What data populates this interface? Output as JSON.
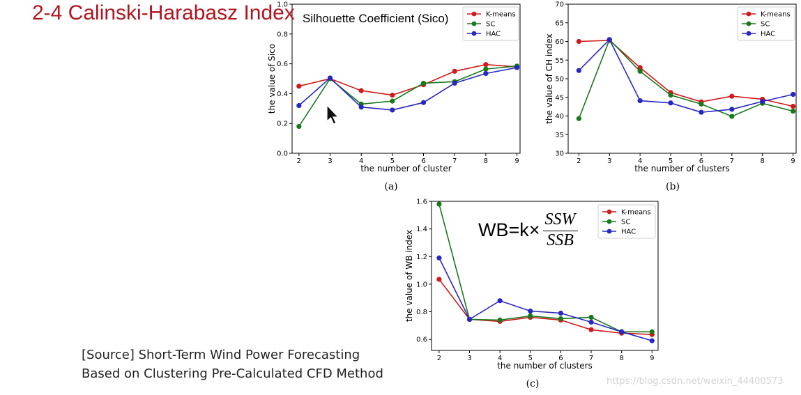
{
  "slide_title": "2-4  Calinski-Harabasz Index",
  "source": {
    "line1": "[Source]  Short-Term Wind Power Forecasting",
    "line2": "Based on Clustering Pre-Calculated CFD Method"
  },
  "watermark": "https://blog.csdn.net/weixin_44400573",
  "formula": {
    "lhs": "WB=k×",
    "numerator": "SSW",
    "denominator": "SSB"
  },
  "colors": {
    "kmeans": "#d0191a",
    "sc": "#18781c",
    "hac": "#2727c2",
    "title": "#b0161f"
  },
  "chart_data": [
    {
      "id": "a",
      "type": "line",
      "title": "Silhouette Coefficient (Sico)",
      "caption": "(a)",
      "xlabel": "the number of cluster",
      "ylabel": "the value of Sico",
      "x": [
        2,
        3,
        4,
        5,
        6,
        7,
        8,
        9
      ],
      "xticks": [
        "2",
        "3",
        "4",
        "5",
        "6",
        "7",
        "8",
        "9"
      ],
      "xlim": [
        1.78,
        9.1
      ],
      "ylim": [
        0.0,
        1.0
      ],
      "yticks": [
        "0.0",
        "0.2",
        "0.4",
        "0.6",
        "0.8",
        "1.0"
      ],
      "ytick_values": [
        0.0,
        0.2,
        0.4,
        0.6,
        0.8,
        1.0
      ],
      "legend": "top-right",
      "series": [
        {
          "name": "K-means",
          "color": "#d0191a",
          "values": [
            0.45,
            0.5,
            0.42,
            0.39,
            0.46,
            0.55,
            0.595,
            0.58
          ]
        },
        {
          "name": "SC",
          "color": "#18781c",
          "values": [
            0.18,
            0.5,
            0.33,
            0.35,
            0.47,
            0.48,
            0.565,
            0.585
          ]
        },
        {
          "name": "HAC",
          "color": "#2727c2",
          "values": [
            0.32,
            0.505,
            0.31,
            0.29,
            0.34,
            0.47,
            0.535,
            0.575
          ]
        }
      ]
    },
    {
      "id": "b",
      "type": "line",
      "title": "",
      "caption": "(b)",
      "xlabel": "the number of clusters",
      "ylabel": "the value of CH index",
      "x": [
        2,
        3,
        4,
        5,
        6,
        7,
        8,
        9
      ],
      "xticks": [
        "2",
        "3",
        "4",
        "5",
        "6",
        "7",
        "8",
        "9"
      ],
      "xlim": [
        1.65,
        9.1
      ],
      "ylim": [
        30,
        70
      ],
      "yticks": [
        "30",
        "35",
        "40",
        "45",
        "50",
        "55",
        "60",
        "65",
        "70"
      ],
      "ytick_values": [
        30,
        35,
        40,
        45,
        50,
        55,
        60,
        65,
        70
      ],
      "legend": "top-right",
      "series": [
        {
          "name": "K-means",
          "color": "#d0191a",
          "values": [
            60.0,
            60.3,
            53.0,
            46.3,
            43.8,
            45.3,
            44.5,
            42.6
          ]
        },
        {
          "name": "SC",
          "color": "#18781c",
          "values": [
            39.3,
            60.5,
            52.0,
            45.6,
            43.2,
            39.9,
            43.4,
            41.3
          ]
        },
        {
          "name": "HAC",
          "color": "#2727c2",
          "values": [
            52.2,
            60.5,
            44.1,
            43.5,
            41.0,
            41.8,
            43.9,
            45.8
          ]
        }
      ]
    },
    {
      "id": "c",
      "type": "line",
      "title": "",
      "caption": "(c)",
      "xlabel": "the number of clusters",
      "ylabel": "the value of WB index",
      "x": [
        2,
        3,
        4,
        5,
        6,
        7,
        8,
        9
      ],
      "xticks": [
        "2",
        "3",
        "4",
        "5",
        "6",
        "7",
        "8",
        "9"
      ],
      "xlim": [
        1.75,
        9.2
      ],
      "ylim": [
        0.52,
        1.6
      ],
      "yticks": [
        "0.6",
        "0.8",
        "1.0",
        "1.2",
        "1.4",
        "1.6"
      ],
      "ytick_values": [
        0.6,
        0.8,
        1.0,
        1.2,
        1.4,
        1.6
      ],
      "legend": "top-right",
      "series": [
        {
          "name": "K-means",
          "color": "#d0191a",
          "values": [
            1.035,
            0.745,
            0.73,
            0.76,
            0.74,
            0.67,
            0.645,
            0.635
          ]
        },
        {
          "name": "SC",
          "color": "#18781c",
          "values": [
            1.58,
            0.745,
            0.74,
            0.77,
            0.75,
            0.76,
            0.655,
            0.655
          ]
        },
        {
          "name": "HAC",
          "color": "#2727c2",
          "values": [
            1.19,
            0.745,
            0.88,
            0.805,
            0.79,
            0.725,
            0.655,
            0.59
          ]
        }
      ]
    }
  ]
}
